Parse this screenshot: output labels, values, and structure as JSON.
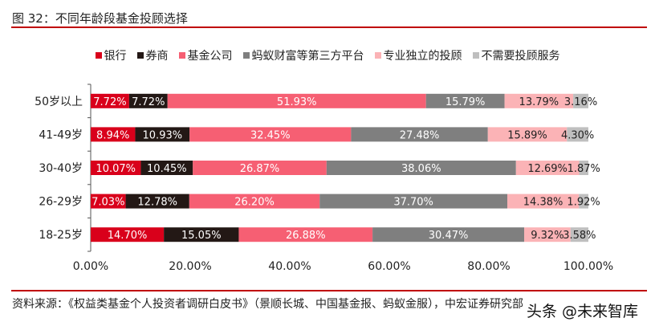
{
  "title": "图 32：不同年龄段基金投顾选择",
  "source": "资料来源：《权益类基金个人投资者调研白皮书》（景顺长城、中国基金报、蚂蚁金服），中宏证券研究部",
  "watermark": "头条 @未来智库",
  "chart_data": {
    "type": "bar",
    "orientation": "horizontal",
    "stacked": true,
    "title": "",
    "xlabel": "",
    "ylabel": "",
    "xlim": [
      0,
      100
    ],
    "x_ticks": [
      "0.00%",
      "20.00%",
      "40.00%",
      "60.00%",
      "80.00%",
      "100.00%"
    ],
    "grid": false,
    "legend_position": "top",
    "categories": [
      "50岁以上",
      "41-49岁",
      "30-40岁",
      "26-29岁",
      "18-25岁"
    ],
    "series": [
      {
        "name": "银行",
        "color": "#d9001b",
        "label_color": "#ffffff",
        "values": [
          7.72,
          8.94,
          10.07,
          7.03,
          14.7
        ]
      },
      {
        "name": "券商",
        "color": "#231815",
        "label_color": "#ffffff",
        "values": [
          7.72,
          10.93,
          10.45,
          12.78,
          15.05
        ]
      },
      {
        "name": "基金公司",
        "color": "#f65f73",
        "label_color": "#ffffff",
        "values": [
          51.93,
          32.45,
          26.87,
          26.2,
          26.88
        ]
      },
      {
        "name": "蚂蚁财富等第三方平台",
        "color": "#7f7f7f",
        "label_color": "#ffffff",
        "values": [
          15.79,
          27.48,
          38.06,
          37.7,
          30.47
        ]
      },
      {
        "name": "专业独立的投顾",
        "color": "#fbb3b6",
        "label_color": "#222222",
        "values": [
          13.79,
          15.89,
          12.69,
          14.38,
          9.32
        ]
      },
      {
        "name": "不需要投顾服务",
        "color": "#bfbfbf",
        "label_color": "#222222",
        "values": [
          3.16,
          4.3,
          1.87,
          1.92,
          3.58
        ]
      }
    ]
  }
}
